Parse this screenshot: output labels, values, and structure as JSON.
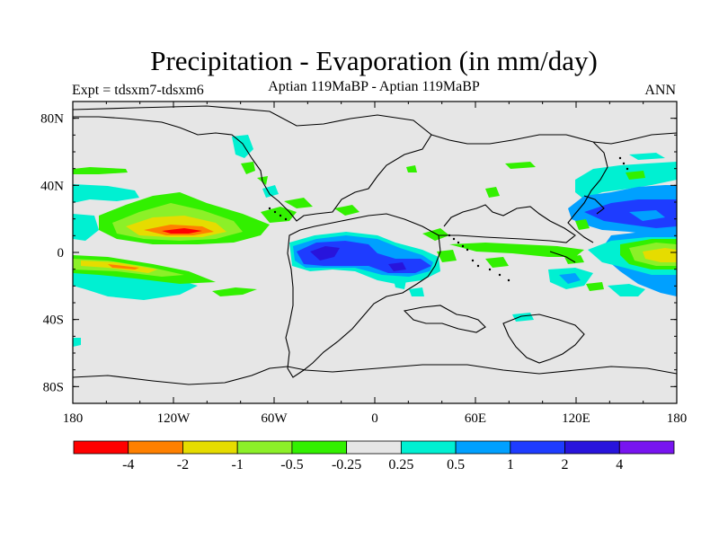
{
  "title": "Precipitation - Evaporation (in mm/day)",
  "left_string": "Expt = tdsxm7-tdsxm6",
  "center_string": "Aptian   119MaBP - Aptian   119MaBP",
  "right_string": "ANN",
  "colors": {
    "ocean_grey": "#e6e6e6",
    "coast": "#000000",
    "bins": [
      "#ff0000",
      "#ff8000",
      "#e6dc00",
      "#8cf028",
      "#32f000",
      "#e6e6e6",
      "#00f0d2",
      "#00a0ff",
      "#1e3cff",
      "#2814dc",
      "#7814f0"
    ]
  },
  "chart_data": {
    "type": "map",
    "projection": "cylindrical-equidistant",
    "lon_range": [
      -180,
      180
    ],
    "lat_range": [
      -90,
      90
    ],
    "x_ticks": [
      {
        "value": -180,
        "label": "180"
      },
      {
        "value": -120,
        "label": "120W"
      },
      {
        "value": -60,
        "label": "60W"
      },
      {
        "value": 0,
        "label": "0"
      },
      {
        "value": 60,
        "label": "60E"
      },
      {
        "value": 120,
        "label": "120E"
      },
      {
        "value": 180,
        "label": "180"
      }
    ],
    "y_ticks": [
      {
        "value": 80,
        "label": "80N"
      },
      {
        "value": 40,
        "label": "40N"
      },
      {
        "value": 0,
        "label": "0"
      },
      {
        "value": -40,
        "label": "40S"
      },
      {
        "value": -80,
        "label": "80S"
      }
    ],
    "labelbar": {
      "levels": [
        "-4",
        "-2",
        "-1",
        "-0.5",
        "-0.25",
        "0.25",
        "0.5",
        "1",
        "2",
        "4"
      ],
      "n_boxes": 11
    },
    "features": [
      {
        "name": "east-pacific-positive-band",
        "bin": 0,
        "lon": [
          -130,
          -95
        ],
        "lat": [
          6,
          14
        ]
      },
      {
        "name": "east-pacific-negative-band",
        "bin": 1,
        "lon": [
          -170,
          -120
        ],
        "lat": [
          -14,
          -4
        ]
      },
      {
        "name": "south-american-monsoon",
        "bin": 8,
        "lon": [
          -40,
          5
        ],
        "lat": [
          -16,
          4
        ]
      },
      {
        "name": "pacific-wet-center",
        "bin": 9,
        "lon": [
          125,
          180
        ],
        "lat": [
          15,
          35
        ]
      }
    ]
  }
}
